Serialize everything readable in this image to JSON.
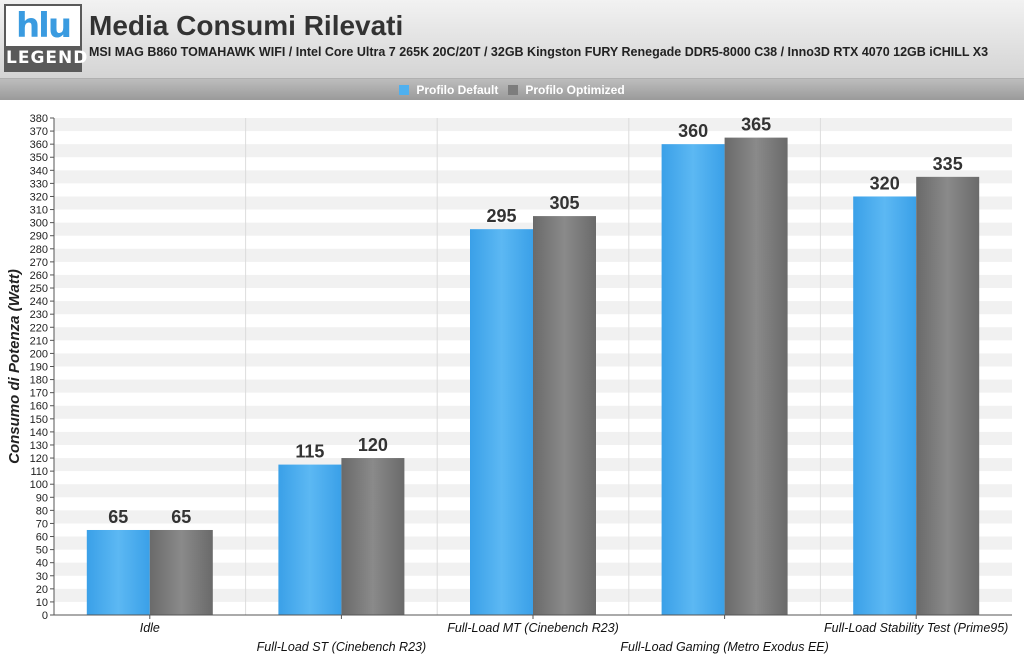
{
  "header": {
    "logo_mark": "hlu",
    "logo_word": "LEGEND",
    "title": "Media Consumi Rilevati",
    "subtitle": "MSI MAG B860 TOMAHAWK WIFI / Intel Core Ultra 7 265K 20C/20T / 32GB Kingston FURY Renegade DDR5-8000 C38 / Inno3D RTX 4070 12GB iCHILL X3"
  },
  "colors": {
    "series1": "#4fb0ef",
    "series2": "#7d7d7d"
  },
  "chart_data": {
    "type": "bar",
    "categories": [
      "Idle",
      "Full-Load ST (Cinebench R23)",
      "Full-Load MT (Cinebench R23)",
      "Full-Load Gaming (Metro Exodus EE)",
      "Full-Load Stability Test (Prime95)"
    ],
    "series": [
      {
        "name": "Profilo Default",
        "values": [
          65,
          115,
          295,
          360,
          320
        ]
      },
      {
        "name": "Profilo Optimized",
        "values": [
          65,
          120,
          305,
          365,
          335
        ]
      }
    ],
    "ylabel": "Consumo di Potenza (Watt)",
    "ylim": [
      0,
      380
    ],
    "ytick_step": 10,
    "legend_position": "top-center",
    "grid": true
  }
}
